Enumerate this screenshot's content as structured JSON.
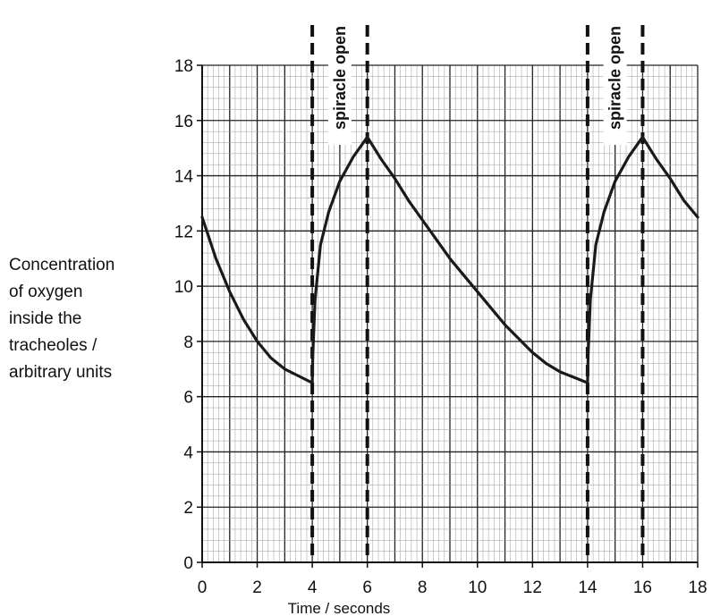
{
  "chart_data": {
    "type": "line",
    "title": "",
    "xlabel": "Time / seconds",
    "ylabel": "Concentration\nof oxygen\ninside the\ntracheoles /\narbitrary units",
    "xlim": [
      0,
      18
    ],
    "ylim": [
      0,
      18
    ],
    "x_ticks": [
      "0",
      "2",
      "4",
      "6",
      "8",
      "10",
      "12",
      "14",
      "16",
      "18"
    ],
    "y_ticks": [
      "0",
      "2",
      "4",
      "6",
      "8",
      "10",
      "12",
      "14",
      "16",
      "18"
    ],
    "grid": true,
    "series": [
      {
        "x": [
          0,
          0.5,
          1,
          1.5,
          2,
          2.5,
          3,
          3.5,
          4,
          4.02,
          4.1,
          4.3,
          4.6,
          5,
          5.5,
          6,
          6.5,
          7,
          7.5,
          8,
          8.5,
          9,
          9.5,
          10,
          10.5,
          11,
          11.5,
          12,
          12.5,
          13,
          13.5,
          14,
          14.02,
          14.1,
          14.3,
          14.6,
          15,
          15.5,
          16,
          16.5,
          17,
          17.5,
          18
        ],
        "values": [
          12.5,
          11.0,
          9.8,
          8.8,
          8.0,
          7.4,
          7.0,
          6.75,
          6.5,
          7.5,
          9.5,
          11.5,
          12.7,
          13.8,
          14.7,
          15.4,
          14.6,
          13.9,
          13.1,
          12.4,
          11.7,
          11.0,
          10.4,
          9.8,
          9.2,
          8.6,
          8.1,
          7.6,
          7.2,
          6.9,
          6.7,
          6.5,
          7.5,
          9.5,
          11.5,
          12.7,
          13.8,
          14.7,
          15.4,
          14.6,
          13.9,
          13.1,
          12.5
        ]
      }
    ],
    "spiracle_lines_x": [
      4,
      6,
      14,
      16
    ],
    "annotations": [
      {
        "text": "spiracle open",
        "x": 5
      },
      {
        "text": "spiracle open",
        "x": 15
      }
    ]
  }
}
